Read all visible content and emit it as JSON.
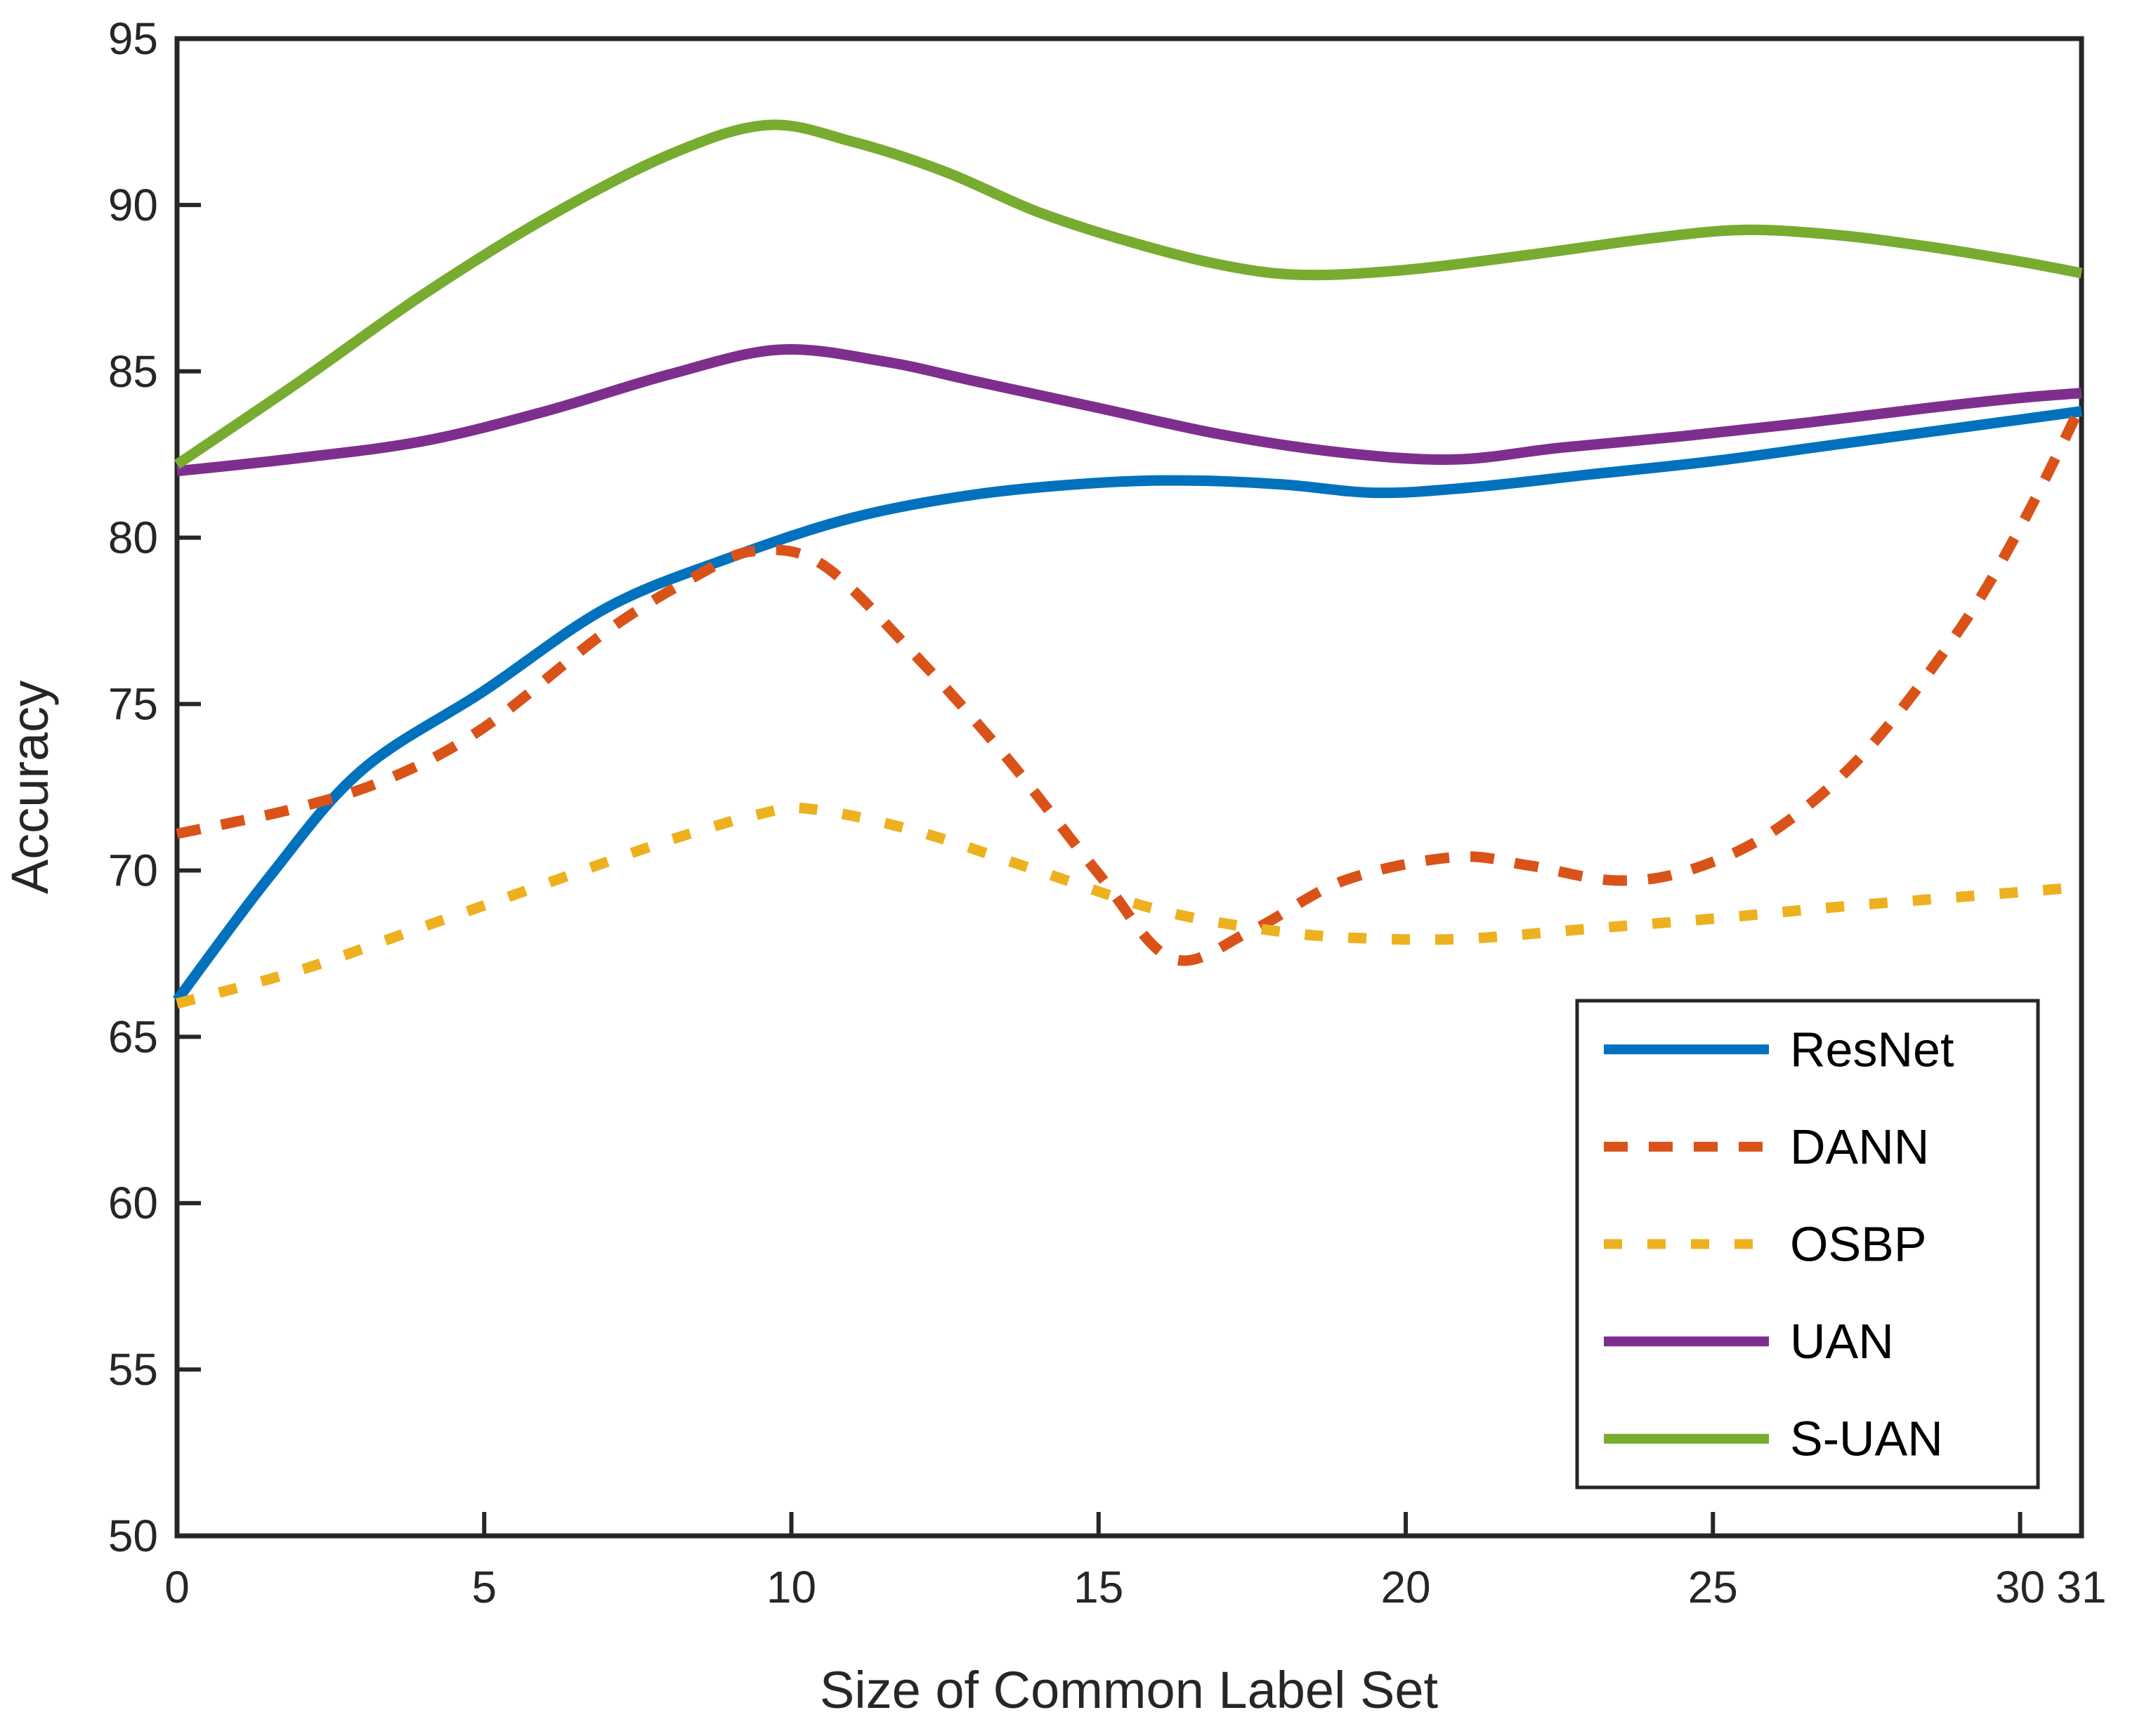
{
  "chart_data": {
    "type": "line",
    "title": "",
    "xlabel": "Size of Common Label Set",
    "ylabel": "Accuracy",
    "xlim": [
      0,
      31
    ],
    "ylim": [
      50,
      95
    ],
    "grid": false,
    "legend_position": "lower right",
    "xticks": [
      {
        "value": 0,
        "label": "0"
      },
      {
        "value": 5,
        "label": "5"
      },
      {
        "value": 10,
        "label": "10"
      },
      {
        "value": 15,
        "label": "15"
      },
      {
        "value": 20,
        "label": "20"
      },
      {
        "value": 25,
        "label": "25"
      },
      {
        "value": 30,
        "label": "30"
      },
      {
        "value": 31,
        "label": "31"
      }
    ],
    "yticks": [
      {
        "value": 50,
        "label": "50"
      },
      {
        "value": 55,
        "label": "55"
      },
      {
        "value": 60,
        "label": "60"
      },
      {
        "value": 65,
        "label": "65"
      },
      {
        "value": 70,
        "label": "70"
      },
      {
        "value": 75,
        "label": "75"
      },
      {
        "value": 80,
        "label": "80"
      },
      {
        "value": 85,
        "label": "85"
      },
      {
        "value": 90,
        "label": "90"
      },
      {
        "value": 95,
        "label": "95"
      }
    ],
    "series": [
      {
        "name": "ResNet",
        "color": "#0072BD",
        "style": "solid",
        "points": [
          [
            0,
            66.1
          ],
          [
            1.5,
            69.8
          ],
          [
            3,
            73.0
          ],
          [
            5,
            75.4
          ],
          [
            7,
            77.9
          ],
          [
            9,
            79.4
          ],
          [
            11,
            80.6
          ],
          [
            13,
            81.3
          ],
          [
            15,
            81.65
          ],
          [
            16.5,
            81.72
          ],
          [
            18,
            81.6
          ],
          [
            19.5,
            81.35
          ],
          [
            21,
            81.5
          ],
          [
            23,
            81.9
          ],
          [
            25,
            82.3
          ],
          [
            27,
            82.8
          ],
          [
            29,
            83.3
          ],
          [
            30,
            83.55
          ],
          [
            31,
            83.8
          ]
        ]
      },
      {
        "name": "DANN",
        "color": "#D95319",
        "style": "dashed",
        "points": [
          [
            0,
            71.1
          ],
          [
            2,
            71.9
          ],
          [
            3.5,
            72.8
          ],
          [
            5,
            74.3
          ],
          [
            7,
            77.2
          ],
          [
            8.5,
            78.9
          ],
          [
            9.4,
            79.6
          ],
          [
            10.5,
            79.2
          ],
          [
            12,
            76.5
          ],
          [
            13.5,
            73.4
          ],
          [
            15,
            69.9
          ],
          [
            16.2,
            67.35
          ],
          [
            17.5,
            68.2
          ],
          [
            19,
            69.7
          ],
          [
            20.8,
            70.4
          ],
          [
            22,
            70.15
          ],
          [
            23.4,
            69.7
          ],
          [
            24.6,
            70.0
          ],
          [
            26,
            71.2
          ],
          [
            27.5,
            73.6
          ],
          [
            29,
            77.2
          ],
          [
            30,
            80.3
          ],
          [
            31,
            84.0
          ]
        ]
      },
      {
        "name": "OSBP",
        "color": "#EDB120",
        "style": "dotted",
        "points": [
          [
            0,
            66.0
          ],
          [
            2,
            67.0
          ],
          [
            4,
            68.3
          ],
          [
            6,
            69.6
          ],
          [
            8,
            70.9
          ],
          [
            9.5,
            71.7
          ],
          [
            10.3,
            71.85
          ],
          [
            12,
            71.2
          ],
          [
            14,
            70.0
          ],
          [
            16,
            68.8
          ],
          [
            18,
            68.15
          ],
          [
            19.5,
            67.95
          ],
          [
            21,
            67.95
          ],
          [
            23,
            68.25
          ],
          [
            25,
            68.55
          ],
          [
            27,
            68.9
          ],
          [
            29,
            69.2
          ],
          [
            31,
            69.5
          ]
        ]
      },
      {
        "name": "UAN",
        "color": "#7E2F8E",
        "style": "solid",
        "points": [
          [
            0,
            82.0
          ],
          [
            2,
            82.4
          ],
          [
            4,
            82.9
          ],
          [
            6,
            83.8
          ],
          [
            8,
            84.9
          ],
          [
            9.8,
            85.65
          ],
          [
            11.5,
            85.3
          ],
          [
            13,
            84.7
          ],
          [
            15,
            83.9
          ],
          [
            17,
            83.1
          ],
          [
            19,
            82.55
          ],
          [
            20.8,
            82.35
          ],
          [
            22.5,
            82.7
          ],
          [
            24.5,
            83.05
          ],
          [
            26.5,
            83.45
          ],
          [
            28.5,
            83.9
          ],
          [
            30,
            84.2
          ],
          [
            31,
            84.35
          ]
        ]
      },
      {
        "name": "S-UAN",
        "color": "#77AC30",
        "style": "solid",
        "points": [
          [
            0,
            82.2
          ],
          [
            2,
            84.7
          ],
          [
            4,
            87.3
          ],
          [
            6,
            89.6
          ],
          [
            8,
            91.5
          ],
          [
            9.6,
            92.4
          ],
          [
            11,
            91.9
          ],
          [
            12.5,
            91.0
          ],
          [
            14,
            89.8
          ],
          [
            15.5,
            88.9
          ],
          [
            17,
            88.2
          ],
          [
            18.3,
            87.9
          ],
          [
            20,
            88.05
          ],
          [
            22,
            88.5
          ],
          [
            24,
            89.0
          ],
          [
            25.5,
            89.25
          ],
          [
            27,
            89.1
          ],
          [
            28.5,
            88.75
          ],
          [
            30,
            88.3
          ],
          [
            31,
            87.95
          ]
        ]
      }
    ]
  }
}
